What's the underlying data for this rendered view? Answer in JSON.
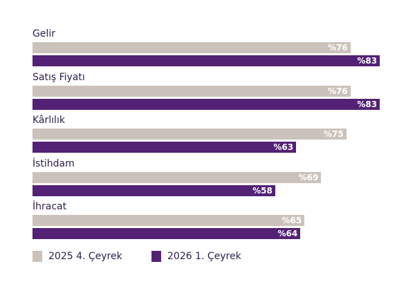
{
  "chart_data": {
    "type": "bar",
    "orientation": "horizontal",
    "categories": [
      "Gelir",
      "Satış Fiyatı",
      "Kârlılık",
      "İstihdam",
      "İhracat"
    ],
    "series": [
      {
        "name": "2025 4. Çeyrek",
        "color": "#cbc3bb",
        "values": [
          76,
          76,
          75,
          69,
          65
        ],
        "labels": [
          "%76",
          "%76",
          "%75",
          "%69",
          "%65"
        ]
      },
      {
        "name": "2026 1. Çeyrek",
        "color": "#532275",
        "values": [
          83,
          83,
          63,
          58,
          64
        ],
        "labels": [
          "%83",
          "%83",
          "%63",
          "%58",
          "%64"
        ]
      }
    ],
    "legend": "bottom-left",
    "grid": false,
    "xlim": [
      0,
      100
    ]
  }
}
